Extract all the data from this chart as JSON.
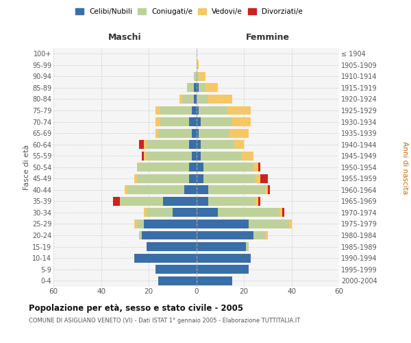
{
  "age_groups": [
    "0-4",
    "5-9",
    "10-14",
    "15-19",
    "20-24",
    "25-29",
    "30-34",
    "35-39",
    "40-44",
    "45-49",
    "50-54",
    "55-59",
    "60-64",
    "65-69",
    "70-74",
    "75-79",
    "80-84",
    "85-89",
    "90-94",
    "95-99",
    "100+"
  ],
  "birth_years": [
    "2000-2004",
    "1995-1999",
    "1990-1994",
    "1985-1989",
    "1980-1984",
    "1975-1979",
    "1970-1974",
    "1965-1969",
    "1960-1964",
    "1955-1959",
    "1950-1954",
    "1945-1949",
    "1940-1944",
    "1935-1939",
    "1930-1934",
    "1925-1929",
    "1920-1924",
    "1915-1919",
    "1910-1914",
    "1905-1909",
    "≤ 1904"
  ],
  "maschi": {
    "celibi": [
      16,
      17,
      26,
      21,
      23,
      22,
      10,
      14,
      5,
      3,
      3,
      2,
      3,
      2,
      3,
      2,
      1,
      1,
      0,
      0,
      0
    ],
    "coniugati": [
      0,
      0,
      0,
      0,
      1,
      3,
      11,
      18,
      24,
      22,
      22,
      19,
      18,
      14,
      12,
      13,
      5,
      3,
      1,
      0,
      0
    ],
    "vedovi": [
      0,
      0,
      0,
      0,
      0,
      1,
      1,
      0,
      1,
      1,
      0,
      1,
      1,
      1,
      2,
      2,
      1,
      0,
      0,
      0,
      0
    ],
    "divorziati": [
      0,
      0,
      0,
      0,
      0,
      0,
      0,
      3,
      0,
      0,
      0,
      1,
      2,
      0,
      0,
      0,
      0,
      0,
      0,
      0,
      0
    ]
  },
  "femmine": {
    "nubili": [
      15,
      22,
      23,
      21,
      24,
      22,
      9,
      5,
      5,
      3,
      3,
      2,
      2,
      1,
      2,
      1,
      0,
      1,
      0,
      0,
      0
    ],
    "coniugate": [
      0,
      0,
      0,
      1,
      5,
      17,
      26,
      20,
      24,
      22,
      21,
      17,
      14,
      13,
      13,
      12,
      5,
      3,
      1,
      0,
      0
    ],
    "vedove": [
      0,
      0,
      0,
      0,
      1,
      1,
      1,
      1,
      1,
      2,
      2,
      5,
      4,
      8,
      8,
      10,
      10,
      5,
      3,
      1,
      0
    ],
    "divorziate": [
      0,
      0,
      0,
      0,
      0,
      0,
      1,
      1,
      1,
      3,
      1,
      0,
      0,
      0,
      0,
      0,
      0,
      0,
      0,
      0,
      0
    ]
  },
  "color_celibi": "#3A6EA8",
  "color_coniugati": "#BFD19A",
  "color_vedovi": "#F5C865",
  "color_divorziati": "#CC2222",
  "xlim": 60,
  "title": "Popolazione per età, sesso e stato civile - 2005",
  "subtitle": "COMUNE DI ASIGLIANO VENETO (VI) - Dati ISTAT 1° gennaio 2005 - Elaborazione TUTTITALIA.IT",
  "ylabel_left": "Fasce di età",
  "ylabel_right": "Anni di nascita",
  "xlabel_left": "Maschi",
  "xlabel_right": "Femmine",
  "bg_color": "#FFFFFF",
  "plot_bg_color": "#F5F5F5"
}
